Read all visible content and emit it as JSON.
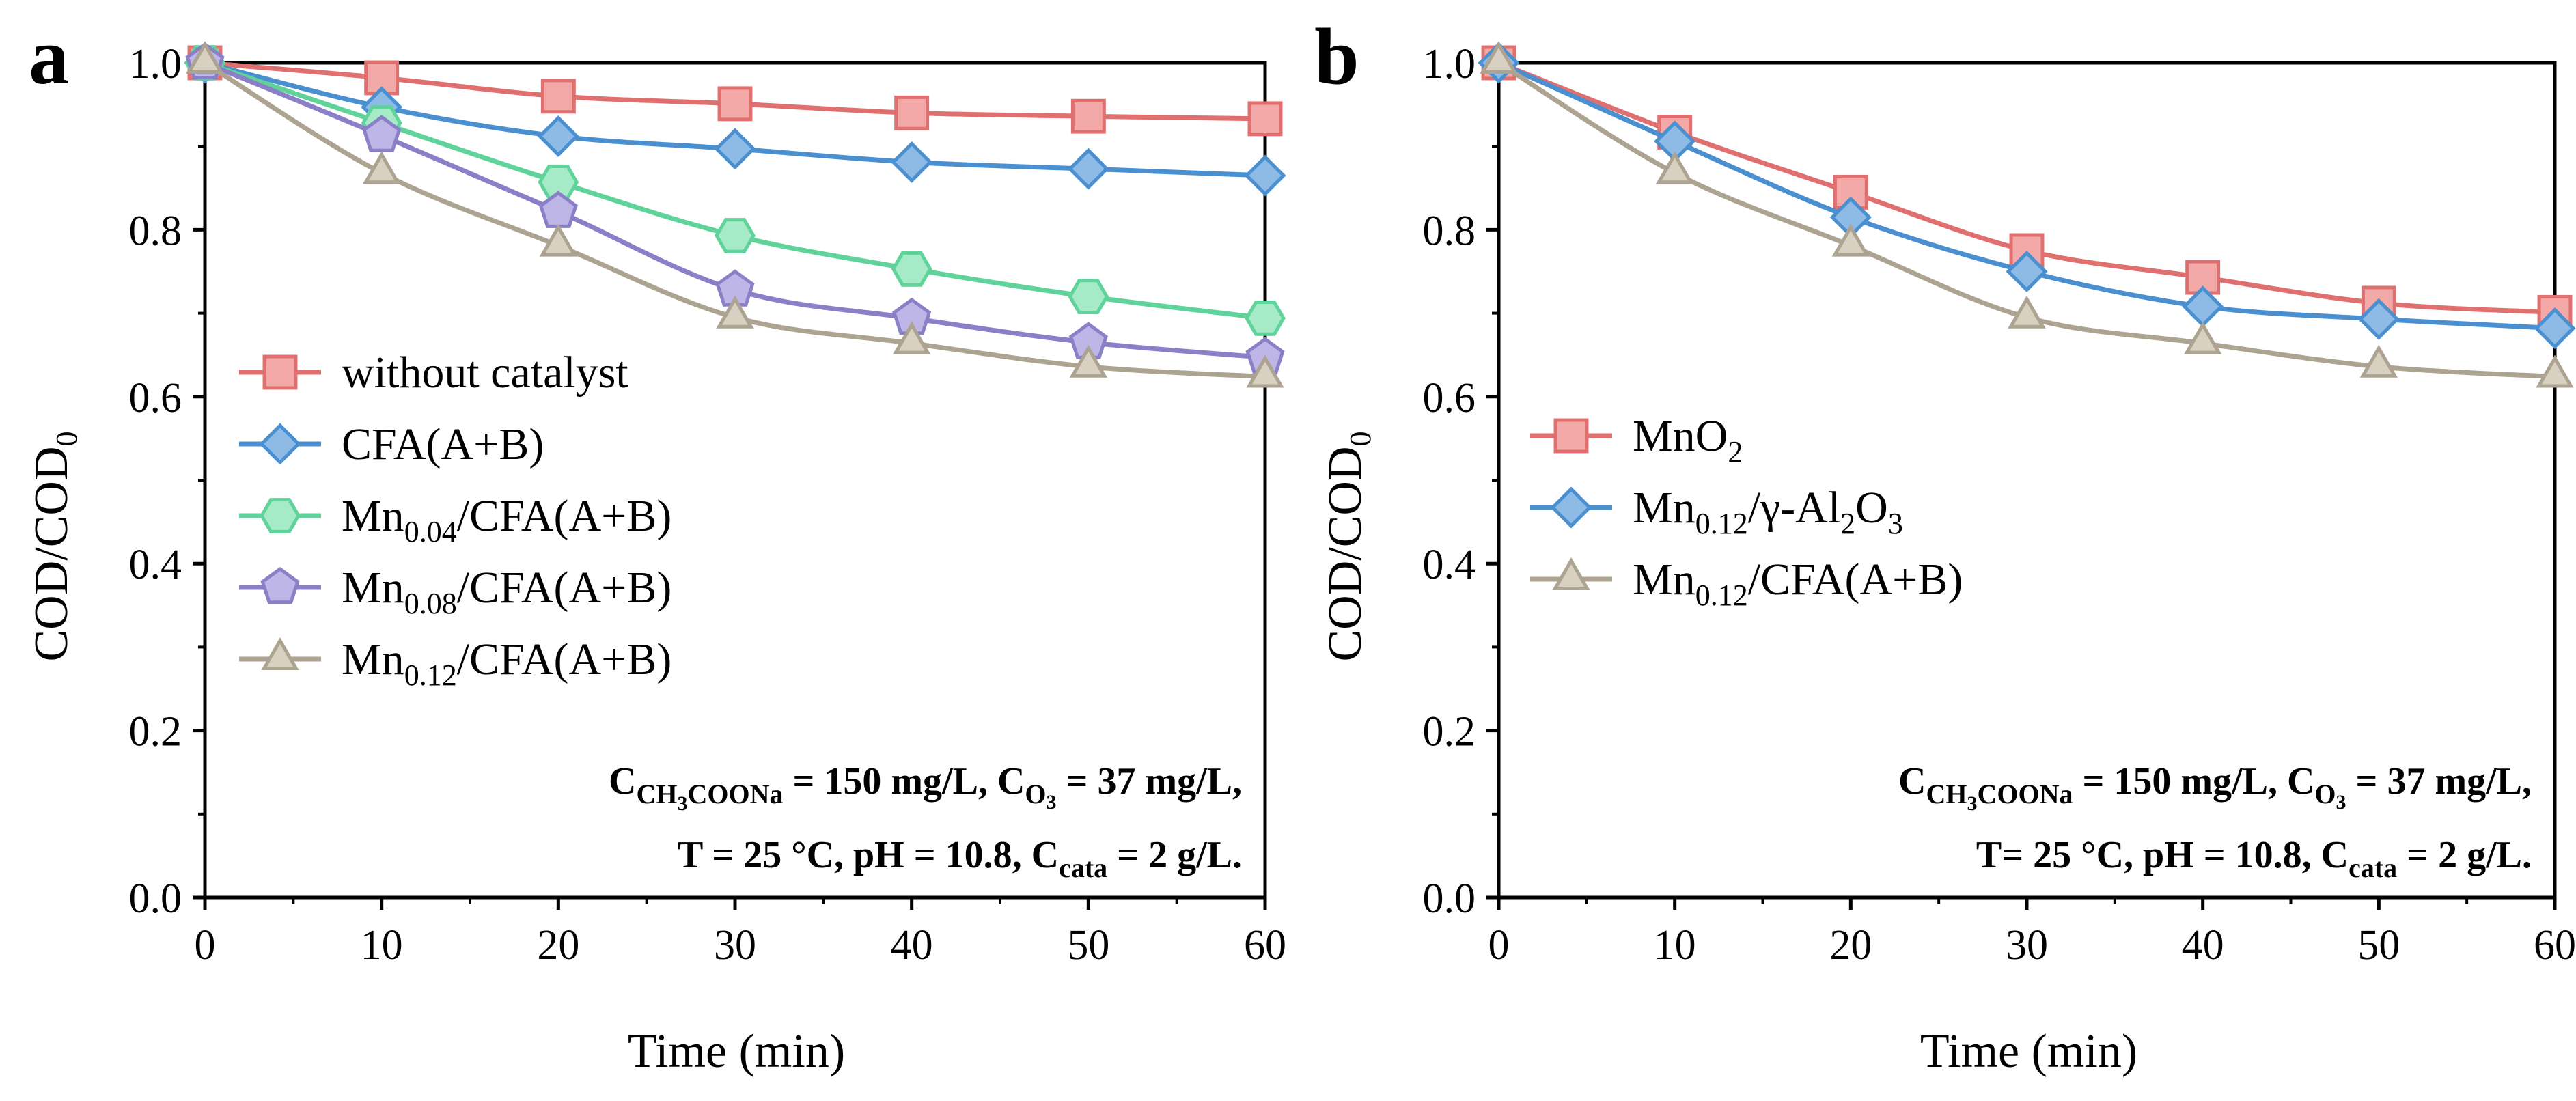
{
  "chart_data": [
    {
      "panel": "a",
      "type": "line",
      "xlabel": "Time (min)",
      "ylabel": "COD/COD0",
      "ylabel_main": "COD/COD",
      "ylabel_sub": "0",
      "xlim": [
        0,
        60
      ],
      "ylim": [
        0.0,
        1.0
      ],
      "xticks": [
        "0",
        "10",
        "20",
        "30",
        "40",
        "50",
        "60"
      ],
      "yticks": [
        "0.0",
        "0.2",
        "0.4",
        "0.6",
        "0.8",
        "1.0"
      ],
      "legend_position": "center-left",
      "x": [
        0,
        10,
        20,
        30,
        40,
        50,
        60
      ],
      "series": [
        {
          "name": "without catalyst",
          "legend_main": "without catalyst",
          "legend_sub": "",
          "legend_rest": "",
          "marker": "square",
          "color": "#e0706f",
          "fill": "#f2a9a8",
          "values": [
            1.0,
            0.982,
            0.96,
            0.951,
            0.94,
            0.936,
            0.933
          ]
        },
        {
          "name": "CFA(A+B)",
          "legend_main": "CFA(A+B)",
          "legend_sub": "",
          "legend_rest": "",
          "marker": "diamond",
          "color": "#4a8fd0",
          "fill": "#8dbbe6",
          "values": [
            1.0,
            0.947,
            0.912,
            0.897,
            0.881,
            0.873,
            0.865
          ]
        },
        {
          "name": "Mn0.04/CFA(A+B)",
          "legend_main": "Mn",
          "legend_sub": "0.04",
          "legend_rest": "/CFA(A+B)",
          "marker": "hexagon",
          "color": "#5fd39a",
          "fill": "#a6ebc7",
          "values": [
            1.0,
            0.928,
            0.857,
            0.793,
            0.753,
            0.72,
            0.694
          ]
        },
        {
          "name": "Mn0.08/CFA(A+B)",
          "legend_main": "Mn",
          "legend_sub": "0.08",
          "legend_rest": "/CFA(A+B)",
          "marker": "pentagon",
          "color": "#8a80c8",
          "fill": "#bdb6e6",
          "values": [
            1.0,
            0.913,
            0.822,
            0.728,
            0.694,
            0.665,
            0.647
          ]
        },
        {
          "name": "Mn0.12/CFA(A+B)",
          "legend_main": "Mn",
          "legend_sub": "0.12",
          "legend_rest": "/CFA(A+B)",
          "marker": "triangle",
          "color": "#aca391",
          "fill": "#d8d1c2",
          "values": [
            1.0,
            0.868,
            0.781,
            0.695,
            0.664,
            0.636,
            0.624
          ]
        }
      ],
      "conditions": {
        "line1": "C(CH3COONa) = 150 mg/L, C(O3) = 37 mg/L,",
        "line2": "T = 25 °C, pH = 10.8, C(cata) = 2 g/L.",
        "c_letter": "C",
        "ch3_a": "CH",
        "ch3_3": "3",
        "ch3_b": "COONa",
        "eq150": " = 150 mg/L, ",
        "o_sub": "O",
        "o_3": "3",
        "eq37": " = 37 mg/L,",
        "line2_pre": "T = 25 °C, pH = 10.8, ",
        "cata": "cata",
        "eq2": " = 2 g/L."
      }
    },
    {
      "panel": "b",
      "type": "line",
      "xlabel": "Time (min)",
      "ylabel": "COD/COD0",
      "ylabel_main": "COD/COD",
      "ylabel_sub": "0",
      "xlim": [
        0,
        60
      ],
      "ylim": [
        0.0,
        1.0
      ],
      "xticks": [
        "0",
        "10",
        "20",
        "30",
        "40",
        "50",
        "60"
      ],
      "yticks": [
        "0.0",
        "0.2",
        "0.4",
        "0.6",
        "0.8",
        "1.0"
      ],
      "legend_position": "center-left",
      "x": [
        0,
        10,
        20,
        30,
        40,
        50,
        60
      ],
      "series": [
        {
          "name": "MnO2",
          "legend_main": "MnO",
          "legend_sub": "2",
          "legend_rest": "",
          "marker": "square",
          "color": "#e0706f",
          "fill": "#f2a9a8",
          "values": [
            1.0,
            0.917,
            0.845,
            0.775,
            0.743,
            0.712,
            0.701
          ]
        },
        {
          "name": "Mn0.12/γ-Al2O3",
          "legend_main": "Mn",
          "legend_sub": "0.12",
          "legend_rest": "/γ-Al",
          "legend_sub2": "2",
          "legend_rest2": "O",
          "legend_sub3": "3",
          "marker": "diamond",
          "color": "#4a8fd0",
          "fill": "#8dbbe6",
          "values": [
            1.0,
            0.906,
            0.815,
            0.75,
            0.708,
            0.693,
            0.682
          ]
        },
        {
          "name": "Mn0.12/CFA(A+B)",
          "legend_main": "Mn",
          "legend_sub": "0.12",
          "legend_rest": "/CFA(A+B)",
          "marker": "triangle",
          "color": "#aca391",
          "fill": "#d8d1c2",
          "values": [
            1.0,
            0.868,
            0.781,
            0.695,
            0.664,
            0.636,
            0.624
          ]
        }
      ],
      "conditions": {
        "line1": "C(CH3COONa) = 150 mg/L, C(O3) = 37 mg/L,",
        "line2": "T= 25 °C, pH = 10.8, C(cata) = 2 g/L.",
        "c_letter": "C",
        "ch3_a": "CH",
        "ch3_3": "3",
        "ch3_b": "COONa",
        "eq150": " = 150 mg/L, ",
        "o_sub": "O",
        "o_3": "3",
        "eq37": " = 37 mg/L,",
        "line2_pre": "T= 25 °C, pH = 10.8, ",
        "cata": "cata",
        "eq2": " = 2 g/L."
      }
    }
  ]
}
